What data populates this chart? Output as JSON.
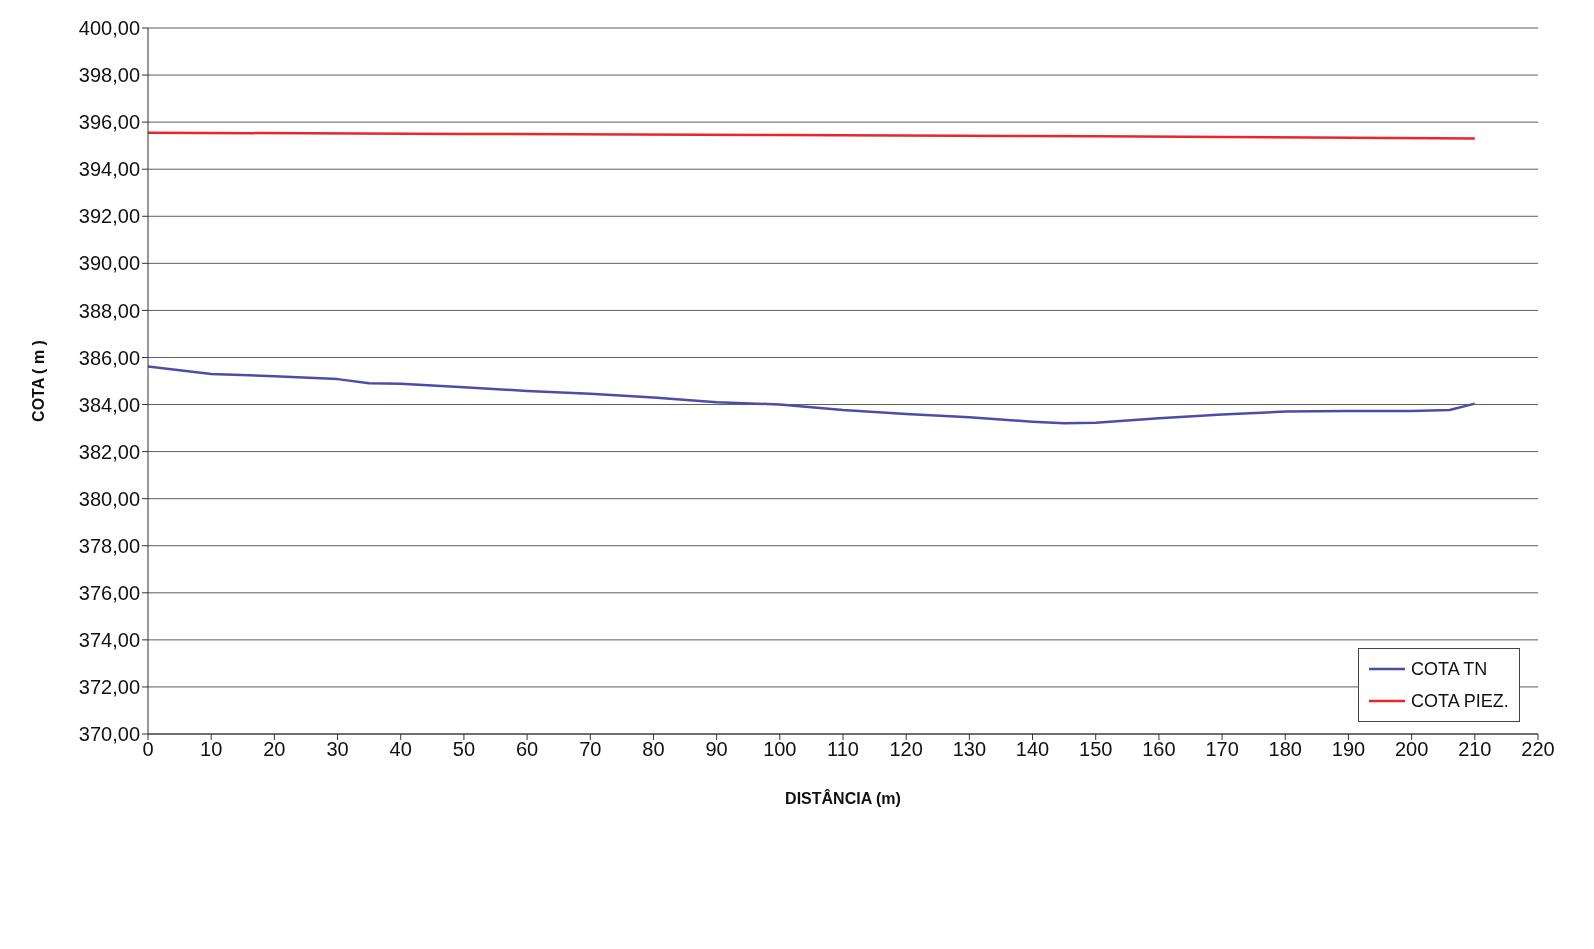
{
  "chart_data": {
    "type": "line",
    "xlabel": "DISTÂNCIA (m)",
    "ylabel": "COTA ( m )",
    "series": [
      {
        "name": "COTA TN",
        "color": "#4a4ea8",
        "x": [
          0,
          10,
          20,
          30,
          35,
          40,
          50,
          60,
          70,
          80,
          90,
          100,
          110,
          120,
          130,
          140,
          145,
          150,
          160,
          170,
          180,
          190,
          200,
          206,
          210
        ],
        "values": [
          385.62,
          385.3,
          385.2,
          385.08,
          384.9,
          384.88,
          384.73,
          384.58,
          384.46,
          384.3,
          384.1,
          384.0,
          383.77,
          383.6,
          383.46,
          383.27,
          383.2,
          383.23,
          383.42,
          383.58,
          383.7,
          383.73,
          383.73,
          383.77,
          384.04
        ]
      },
      {
        "name": "COTA PIEZ.",
        "color": "#e8262b",
        "x": [
          0,
          50,
          100,
          150,
          210
        ],
        "values": [
          395.55,
          395.5,
          395.45,
          395.4,
          395.3
        ]
      }
    ],
    "xlim": [
      0,
      220
    ],
    "xticks": [
      0,
      10,
      20,
      30,
      40,
      50,
      60,
      70,
      80,
      90,
      100,
      110,
      120,
      130,
      140,
      150,
      160,
      170,
      180,
      190,
      200,
      210,
      220
    ],
    "ylim": [
      370,
      400
    ],
    "yticks": [
      {
        "value": 370,
        "label": "370,00"
      },
      {
        "value": 372,
        "label": "372,00"
      },
      {
        "value": 374,
        "label": "374,00"
      },
      {
        "value": 376,
        "label": "376,00"
      },
      {
        "value": 378,
        "label": "378,00"
      },
      {
        "value": 380,
        "label": "380,00"
      },
      {
        "value": 382,
        "label": "382,00"
      },
      {
        "value": 384,
        "label": "384,00"
      },
      {
        "value": 386,
        "label": "386,00"
      },
      {
        "value": 388,
        "label": "388,00"
      },
      {
        "value": 390,
        "label": "390,00"
      },
      {
        "value": 392,
        "label": "392,00"
      },
      {
        "value": 394,
        "label": "394,00"
      },
      {
        "value": 396,
        "label": "396,00"
      },
      {
        "value": 398,
        "label": "398,00"
      },
      {
        "value": 400,
        "label": "400,00"
      }
    ],
    "grid": "y",
    "legend": "bottom right",
    "marker": "none",
    "line_style": "solid"
  }
}
